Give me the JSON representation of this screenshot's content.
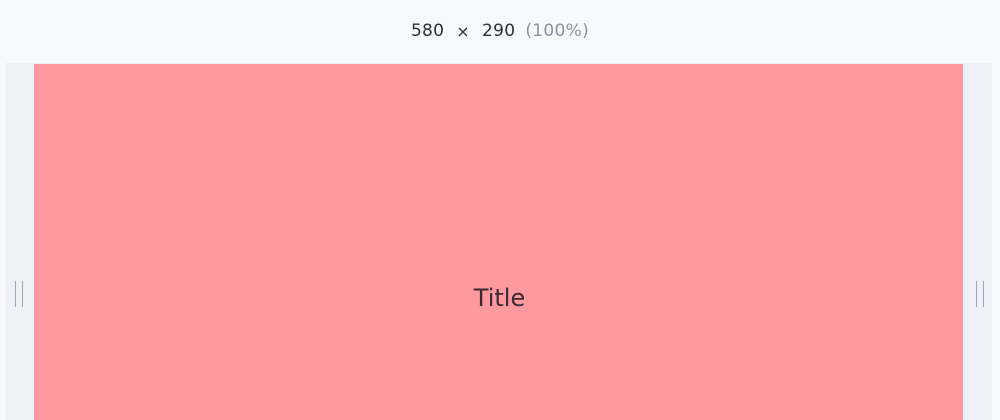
{
  "toolbar": {
    "width": "580",
    "separator": "×",
    "height": "290",
    "zoom": "(100%)"
  },
  "canvas": {
    "title": "Title",
    "background_color": "#ff99a0"
  },
  "handles": {
    "left_icon": "resize-handle-icon",
    "right_icon": "resize-handle-icon"
  }
}
